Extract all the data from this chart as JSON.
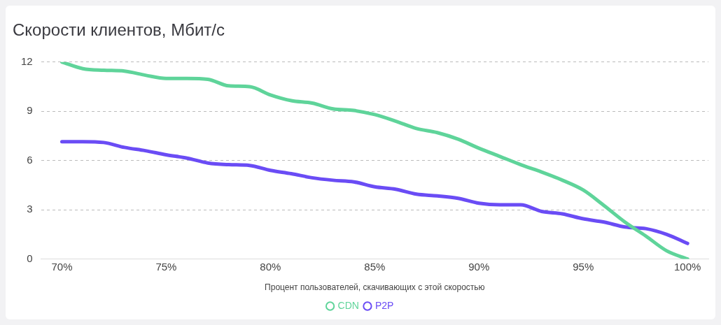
{
  "chart_data": {
    "type": "line",
    "title": "Скорости клиентов, Мбит/с",
    "xlabel": "Процент пользователей, скачивающих с этой скоростью",
    "x": [
      70,
      71,
      72,
      73,
      74,
      75,
      76,
      77,
      78,
      79,
      80,
      81,
      82,
      83,
      84,
      85,
      86,
      87,
      88,
      89,
      90,
      91,
      92,
      93,
      94,
      95,
      96,
      97,
      98,
      99,
      100
    ],
    "series": [
      {
        "name": "CDN",
        "color": "#5fd49a",
        "values": [
          12,
          11.6,
          11.5,
          11.45,
          11.2,
          11.0,
          11.0,
          10.95,
          10.55,
          10.5,
          10.0,
          9.65,
          9.5,
          9.15,
          9.05,
          8.8,
          8.4,
          7.95,
          7.7,
          7.3,
          6.75,
          6.25,
          5.75,
          5.3,
          4.8,
          4.2,
          3.25,
          2.25,
          1.4,
          0.5,
          0
        ]
      },
      {
        "name": "P2P",
        "color": "#6a4cf5",
        "values": [
          7.15,
          7.15,
          7.1,
          6.8,
          6.6,
          6.35,
          6.15,
          5.85,
          5.75,
          5.7,
          5.4,
          5.2,
          4.95,
          4.8,
          4.7,
          4.4,
          4.25,
          3.95,
          3.85,
          3.7,
          3.4,
          3.3,
          3.3,
          2.9,
          2.75,
          2.45,
          2.25,
          1.95,
          1.85,
          1.5,
          0.95
        ]
      }
    ],
    "xlim": [
      69,
      101
    ],
    "xticks": [
      {
        "value": 70,
        "label": "70%"
      },
      {
        "value": 75,
        "label": "75%"
      },
      {
        "value": 80,
        "label": "80%"
      },
      {
        "value": 85,
        "label": "85%"
      },
      {
        "value": 90,
        "label": "90%"
      },
      {
        "value": 95,
        "label": "95%"
      },
      {
        "value": 100,
        "label": "100%"
      }
    ],
    "ylim": [
      0,
      12
    ],
    "yticks": [
      0,
      3,
      6,
      9,
      12
    ],
    "grid": "y",
    "legend": "bottom",
    "marker": "none",
    "line_style": "solid"
  }
}
